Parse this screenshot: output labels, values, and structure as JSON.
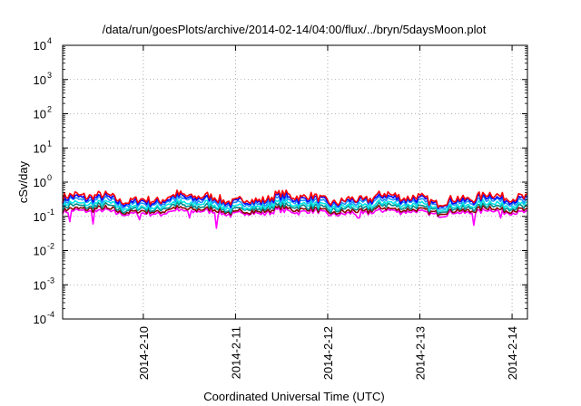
{
  "chart_data": {
    "type": "line",
    "title": "/data/run/goesPlots/archive/2014-02-14/04:00/flux/../bryn/5daysMoon.plot",
    "xlabel": "Coordinated Universal Time (UTC)",
    "ylabel": "cSv/day",
    "yscale": "log",
    "ylim": [
      0.0001,
      10000
    ],
    "xlim": [
      "2014-02-09 03:00",
      "2014-02-14 04:00"
    ],
    "grid": true,
    "x_ticks": [
      "2014-2-10",
      "2014-2-11",
      "2014-2-12",
      "2014-2-13",
      "2014-2-14"
    ],
    "y_ticks": [
      {
        "value": 0.0001,
        "base": "10",
        "exp": "-4"
      },
      {
        "value": 0.001,
        "base": "10",
        "exp": "-3"
      },
      {
        "value": 0.01,
        "base": "10",
        "exp": "-2"
      },
      {
        "value": 0.1,
        "base": "10",
        "exp": "-1"
      },
      {
        "value": 1,
        "base": "10",
        "exp": "0"
      },
      {
        "value": 10,
        "base": "10",
        "exp": "1"
      },
      {
        "value": 100,
        "base": "10",
        "exp": "2"
      },
      {
        "value": 1000,
        "base": "10",
        "exp": "3"
      },
      {
        "value": 10000,
        "base": "10",
        "exp": "4"
      }
    ],
    "series": [
      {
        "color": "#ff00ff",
        "level": 0.13,
        "spikes": [
          {
            "x": "2014-02-09 05:00",
            "y": 0.07
          },
          {
            "x": "2014-02-09 11:00",
            "y": 0.06
          },
          {
            "x": "2014-02-09 23:00",
            "y": 0.08
          },
          {
            "x": "2014-02-10 12:00",
            "y": 0.09
          },
          {
            "x": "2014-02-10 19:00",
            "y": 0.045
          },
          {
            "x": "2014-02-12 08:00",
            "y": 0.09
          },
          {
            "x": "2014-02-13 14:00",
            "y": 0.055
          },
          {
            "x": "2014-02-13 21:00",
            "y": 0.09
          }
        ]
      },
      {
        "color": "#8b0000",
        "level": 0.15,
        "spikes": []
      },
      {
        "color": "#008b8b",
        "level": 0.18,
        "spikes": []
      },
      {
        "color": "#00e5e5",
        "level": 0.21,
        "spikes": []
      },
      {
        "color": "#1e90ff",
        "level": 0.26,
        "spikes": []
      },
      {
        "color": "#0000ff",
        "level": 0.3,
        "spikes": []
      },
      {
        "color": "#ff0000",
        "level": 0.34,
        "spikes": []
      }
    ]
  }
}
